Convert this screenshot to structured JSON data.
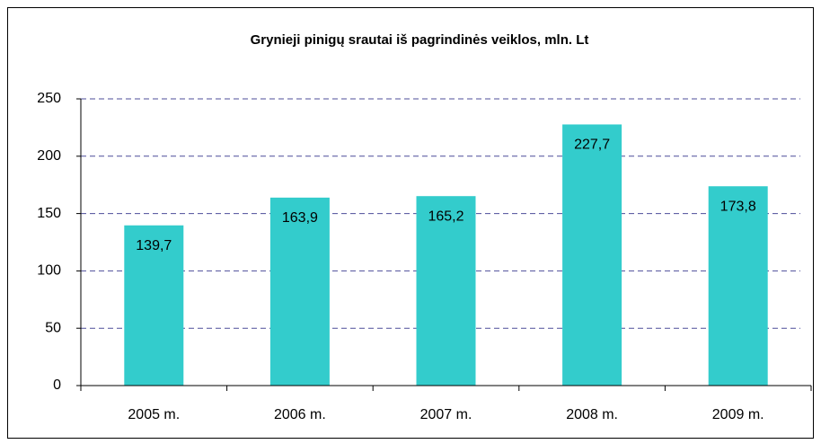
{
  "chart_data": {
    "type": "bar",
    "title": "Grynieji pinigų srautai iš pagrindinės veiklos, mln. Lt",
    "categories": [
      "2005 m.",
      "2006 m.",
      "2007 m.",
      "2008 m.",
      "2009 m."
    ],
    "values": [
      139.7,
      163.9,
      165.2,
      227.7,
      173.8
    ],
    "value_labels": [
      "139,7",
      "163,9",
      "165,2",
      "227,7",
      "173,8"
    ],
    "color": "#33cccc",
    "ylim": [
      0,
      250
    ],
    "yticks": [
      0,
      50,
      100,
      150,
      200,
      250
    ],
    "grid": true
  }
}
